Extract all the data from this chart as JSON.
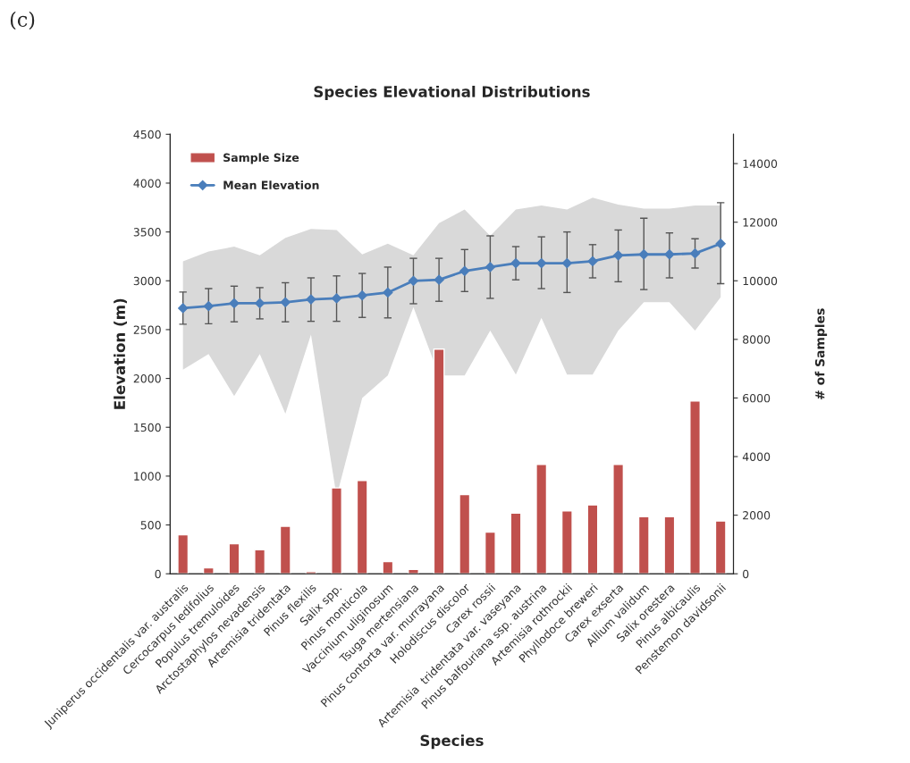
{
  "chart_data": {
    "type": "line",
    "title": "Species Elevational Distributions",
    "xlabel": "Species",
    "ylabel": "Elevation (m)",
    "y2label": "# of Samples",
    "annotations": [
      "(c)"
    ],
    "categories": [
      "Juniperus occidentalis var. australis",
      "Cercocarpus ledifolius",
      "Populus tremuloides",
      "Arctostaphylos nevadensis",
      "Artemisia tridentata",
      "Pinus flexilis",
      "Salix spp.",
      "Pinus monticola",
      "Vaccinium uliginosum",
      "Tsuga mertensiana",
      "Pinus contorta var. murrayana",
      "Holodiscus discolor",
      "Carex rossii",
      "Artemisia  tridentata var. vaseyana",
      "Pinus balfouriana ssp. austrina",
      "Artemisia rothrockii",
      "Phyllodoce breweri",
      "Carex exserta",
      "Allium validum",
      "Salix orestera",
      "Pinus albicaulis",
      "Penstemon davidsonii"
    ],
    "series": [
      {
        "name": "Sample Size",
        "type": "bar",
        "axis": "y2",
        "color": "#c0504d",
        "values": [
          1330,
          200,
          1030,
          820,
          1620,
          70,
          2930,
          3180,
          420,
          150,
          7670,
          2700,
          1420,
          2070,
          3730,
          2150,
          2350,
          3730,
          1950,
          1950,
          5900,
          1800
        ]
      },
      {
        "name": "Mean Elevation",
        "color": "#4a7ebb",
        "marker": "diamond",
        "values": [
          2720,
          2740,
          2770,
          2770,
          2780,
          2810,
          2820,
          2850,
          2880,
          3000,
          3010,
          3100,
          3140,
          3180,
          3180,
          3180,
          3200,
          3260,
          3270,
          3270,
          3280,
          3380
        ],
        "errors": [
          [
            2555,
            2885
          ],
          [
            2560,
            2920
          ],
          [
            2580,
            2945
          ],
          [
            2610,
            2930
          ],
          [
            2580,
            2980
          ],
          [
            2585,
            3030
          ],
          [
            2585,
            3050
          ],
          [
            2625,
            3075
          ],
          [
            2620,
            3140
          ],
          [
            2765,
            3230
          ],
          [
            2790,
            3230
          ],
          [
            2890,
            3320
          ],
          [
            2820,
            3460
          ],
          [
            3010,
            3350
          ],
          [
            2920,
            3450
          ],
          [
            2880,
            3500
          ],
          [
            3030,
            3370
          ],
          [
            2990,
            3520
          ],
          [
            2910,
            3640
          ],
          [
            3030,
            3490
          ],
          [
            3130,
            3430
          ],
          [
            2970,
            3800
          ]
        ],
        "lower": [
          2090,
          2250,
          1820,
          2250,
          1640,
          2450,
          790,
          1800,
          2030,
          2730,
          2030,
          2030,
          2490,
          2040,
          2620,
          2040,
          2040,
          2490,
          2780,
          2780,
          2490,
          2830
        ],
        "upper": [
          3200,
          3300,
          3350,
          3260,
          3440,
          3530,
          3520,
          3270,
          3380,
          3260,
          3590,
          3730,
          3460,
          3730,
          3770,
          3730,
          3850,
          3780,
          3740,
          3740,
          3770,
          3770
        ]
      }
    ],
    "ylim": [
      0,
      4500
    ],
    "yticks": [
      0,
      500,
      1000,
      1500,
      2000,
      2500,
      3000,
      3500,
      4000,
      4500
    ],
    "y2lim": [
      0,
      15000
    ],
    "y2ticks": [
      0,
      2000,
      4000,
      6000,
      8000,
      10000,
      12000,
      14000
    ],
    "grid": false,
    "legend": "top left"
  }
}
